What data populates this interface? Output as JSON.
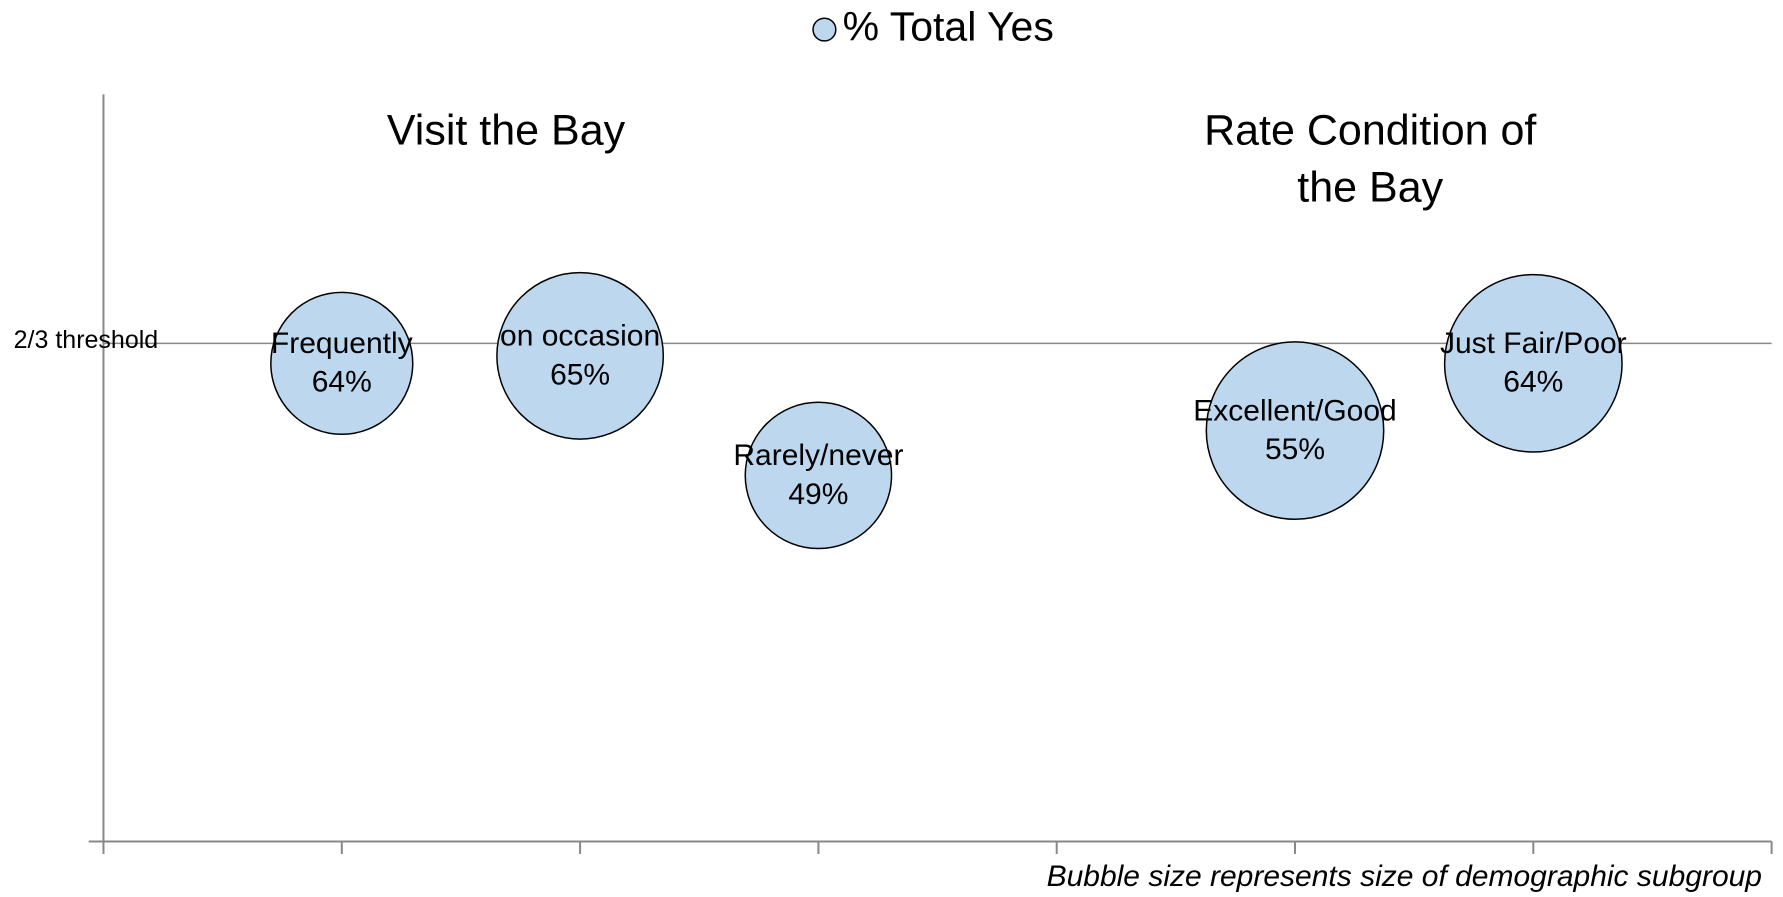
{
  "chart_data": {
    "type": "bubble",
    "legend": "top",
    "series": [
      {
        "name": "% Total Yes",
        "color": "#bdd7ee",
        "categories": [
          "Frequently",
          "on occasion",
          "Rarely/never",
          "Excellent/Good",
          "Just Fair/Poor"
        ],
        "x": [
          1,
          2,
          3,
          5,
          6
        ],
        "values": [
          64,
          65,
          49,
          55,
          64
        ],
        "value_labels": [
          "64%",
          "65%",
          "49%",
          "55%",
          "64%"
        ],
        "sizes": [
          16,
          22,
          17,
          25,
          25
        ]
      }
    ],
    "xlim": [
      0,
      7
    ],
    "xticks": [
      0,
      1,
      2,
      3,
      4,
      5,
      6,
      7
    ],
    "ylim": [
      0,
      100
    ],
    "threshold": {
      "label": "2/3 threshold",
      "value": 66.67
    },
    "group_labels": [
      {
        "lines": [
          "Visit the Bay"
        ]
      },
      {
        "lines": [
          "Rate Condition of",
          "the Bay"
        ]
      }
    ],
    "footnote": "Bubble size represents size of demographic subgroup"
  }
}
